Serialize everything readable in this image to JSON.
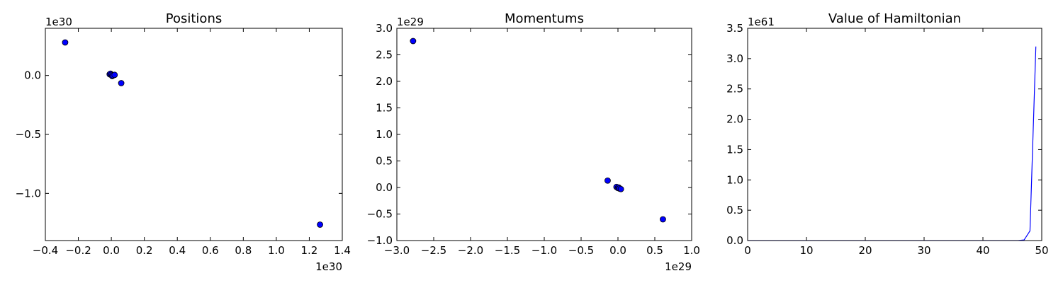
{
  "chart_data": [
    {
      "type": "scatter",
      "title": "Positions",
      "xlabel": "",
      "ylabel": "",
      "xlim": [
        -0.4,
        1.4
      ],
      "ylim": [
        -1.4,
        0.4
      ],
      "x_multiplier": "1e30",
      "y_multiplier": "1e30",
      "x_ticks": [
        "−0.4",
        "−0.2",
        "0.0",
        "0.2",
        "0.4",
        "0.6",
        "0.8",
        "1.0",
        "1.2",
        "1.4"
      ],
      "x_tick_values": [
        -0.4,
        -0.2,
        0.0,
        0.2,
        0.4,
        0.6,
        0.8,
        1.0,
        1.2,
        1.4
      ],
      "y_ticks": [
        "−1.0",
        "−0.5",
        "0.0"
      ],
      "y_tick_values": [
        -1.0,
        -0.5,
        0.0
      ],
      "marker_color": "#0000ff",
      "points": [
        {
          "x": -0.28,
          "y": 0.28
        },
        {
          "x": -0.01,
          "y": 0.01
        },
        {
          "x": -0.005,
          "y": 0.015
        },
        {
          "x": 0.0,
          "y": 0.005
        },
        {
          "x": 0.005,
          "y": -0.005
        },
        {
          "x": 0.01,
          "y": 0.0
        },
        {
          "x": 0.02,
          "y": 0.005
        },
        {
          "x": 0.06,
          "y": -0.065
        },
        {
          "x": 1.265,
          "y": -1.265
        }
      ]
    },
    {
      "type": "scatter",
      "title": "Momentums",
      "xlabel": "",
      "ylabel": "",
      "xlim": [
        -3.0,
        1.0
      ],
      "ylim": [
        -1.0,
        3.0
      ],
      "x_multiplier": "1e29",
      "y_multiplier": "1e29",
      "x_ticks": [
        "−3.0",
        "−2.5",
        "−2.0",
        "−1.5",
        "−1.0",
        "−0.5",
        "0.0",
        "0.5",
        "1.0"
      ],
      "x_tick_values": [
        -3.0,
        -2.5,
        -2.0,
        -1.5,
        -1.0,
        -0.5,
        0.0,
        0.5,
        1.0
      ],
      "y_ticks": [
        "−1.0",
        "−0.5",
        "0.0",
        "0.5",
        "1.0",
        "1.5",
        "2.0",
        "2.5",
        "3.0"
      ],
      "y_tick_values": [
        -1.0,
        -0.5,
        0.0,
        0.5,
        1.0,
        1.5,
        2.0,
        2.5,
        3.0
      ],
      "marker_color": "#0000ff",
      "points": [
        {
          "x": -2.78,
          "y": 2.76
        },
        {
          "x": -0.14,
          "y": 0.13
        },
        {
          "x": -0.02,
          "y": 0.01
        },
        {
          "x": 0.0,
          "y": -0.01
        },
        {
          "x": 0.01,
          "y": 0.0
        },
        {
          "x": 0.02,
          "y": -0.02
        },
        {
          "x": 0.04,
          "y": -0.03
        },
        {
          "x": 0.61,
          "y": -0.6
        }
      ]
    },
    {
      "type": "line",
      "title": "Value of Hamiltonian",
      "xlabel": "",
      "ylabel": "",
      "xlim": [
        0,
        50
      ],
      "ylim": [
        0.0,
        3.5
      ],
      "y_multiplier": "1e61",
      "x_ticks": [
        "0",
        "10",
        "20",
        "30",
        "40",
        "50"
      ],
      "x_tick_values": [
        0,
        10,
        20,
        30,
        40,
        50
      ],
      "y_ticks": [
        "0.0",
        "0.5",
        "1.0",
        "1.5",
        "2.0",
        "2.5",
        "3.0",
        "3.5"
      ],
      "y_tick_values": [
        0.0,
        0.5,
        1.0,
        1.5,
        2.0,
        2.5,
        3.0,
        3.5
      ],
      "line_color": "#0000ff",
      "x": [
        0,
        10,
        20,
        30,
        40,
        46,
        47,
        48,
        49
      ],
      "y": [
        0.0,
        0.0,
        0.0,
        0.0,
        0.0,
        0.0,
        0.01,
        0.16,
        3.2
      ]
    }
  ]
}
